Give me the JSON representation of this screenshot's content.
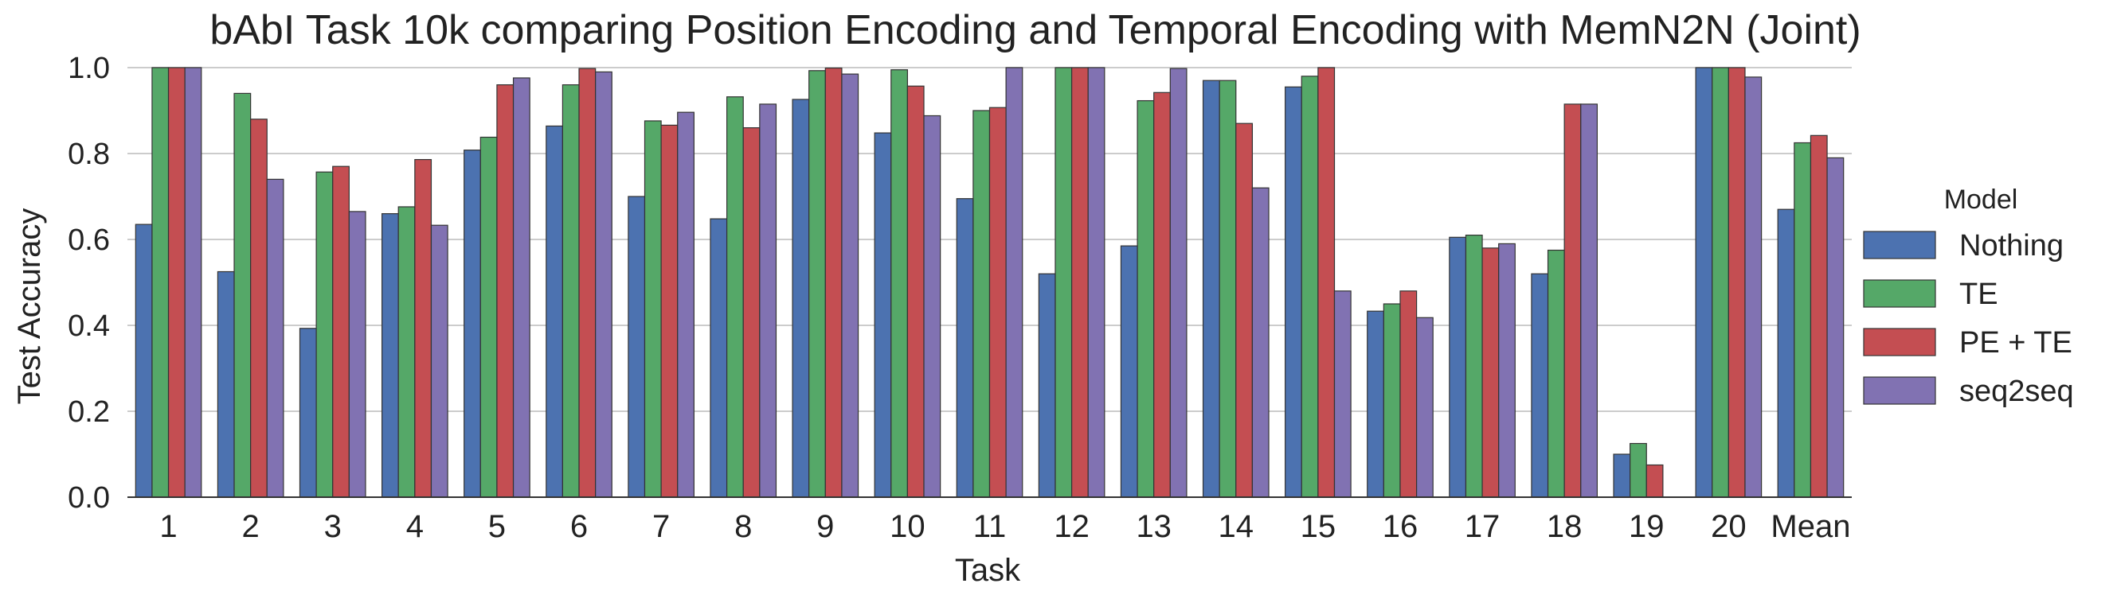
{
  "chart_data": {
    "type": "bar",
    "title": "bAbI Task 10k comparing Position Encoding and Temporal Encoding with MemN2N (Joint)",
    "xlabel": "Task",
    "ylabel": "Test Accuracy",
    "ylim": [
      0,
      1.0
    ],
    "yticks": [
      "0.0",
      "0.2",
      "0.4",
      "0.6",
      "0.8",
      "1.0"
    ],
    "grid": "horizontal",
    "legend": {
      "title": "Model",
      "position": "right"
    },
    "categories": [
      "1",
      "2",
      "3",
      "4",
      "5",
      "6",
      "7",
      "8",
      "9",
      "10",
      "11",
      "12",
      "13",
      "14",
      "15",
      "16",
      "17",
      "18",
      "19",
      "20",
      "Mean"
    ],
    "series": [
      {
        "name": "Nothing",
        "color": "#4c72b0",
        "values": [
          0.635,
          0.525,
          0.393,
          0.66,
          0.808,
          0.864,
          0.7,
          0.648,
          0.926,
          0.848,
          0.695,
          0.52,
          0.585,
          0.97,
          0.955,
          0.433,
          0.605,
          0.52,
          0.1,
          1.0,
          0.67
        ]
      },
      {
        "name": "TE",
        "color": "#55a868",
        "values": [
          1.0,
          0.94,
          0.757,
          0.676,
          0.838,
          0.96,
          0.876,
          0.932,
          0.993,
          0.995,
          0.9,
          1.0,
          0.923,
          0.97,
          0.98,
          0.45,
          0.61,
          0.575,
          0.125,
          1.0,
          0.825
        ]
      },
      {
        "name": "PE + TE",
        "color": "#c44e52",
        "values": [
          1.0,
          0.88,
          0.77,
          0.786,
          0.96,
          0.998,
          0.866,
          0.86,
          0.999,
          0.957,
          0.907,
          1.0,
          0.942,
          0.87,
          1.0,
          0.48,
          0.58,
          0.915,
          0.075,
          1.0,
          0.842
        ]
      },
      {
        "name": "seq2seq",
        "color": "#8172b2",
        "values": [
          1.0,
          0.74,
          0.665,
          0.633,
          0.976,
          0.99,
          0.896,
          0.915,
          0.985,
          0.888,
          1.0,
          1.0,
          0.998,
          0.72,
          0.48,
          0.418,
          0.59,
          0.915,
          0.0,
          0.978,
          0.79
        ]
      }
    ]
  }
}
